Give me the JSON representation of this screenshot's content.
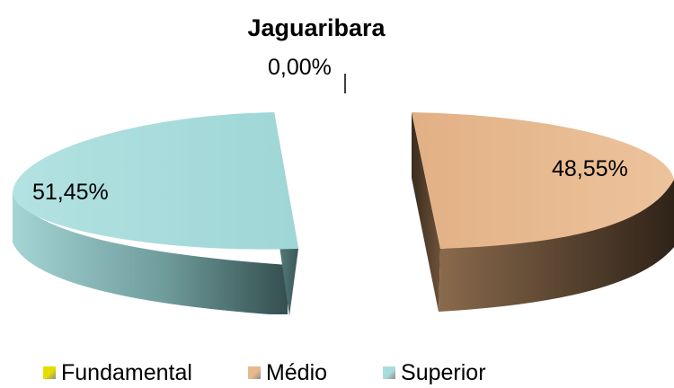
{
  "chart_data": {
    "type": "pie",
    "title": "Jaguaribara",
    "categories": [
      "Fundamental",
      "Médio",
      "Superior"
    ],
    "values": [
      0.0,
      48.55,
      51.45
    ],
    "data_labels": [
      "0,00%",
      "48,55%",
      "51,45%"
    ],
    "colors": [
      "#e6dd00",
      "#e9b98e",
      "#a9dcdc"
    ],
    "legend_position": "bottom",
    "style": "3d-exploded"
  }
}
